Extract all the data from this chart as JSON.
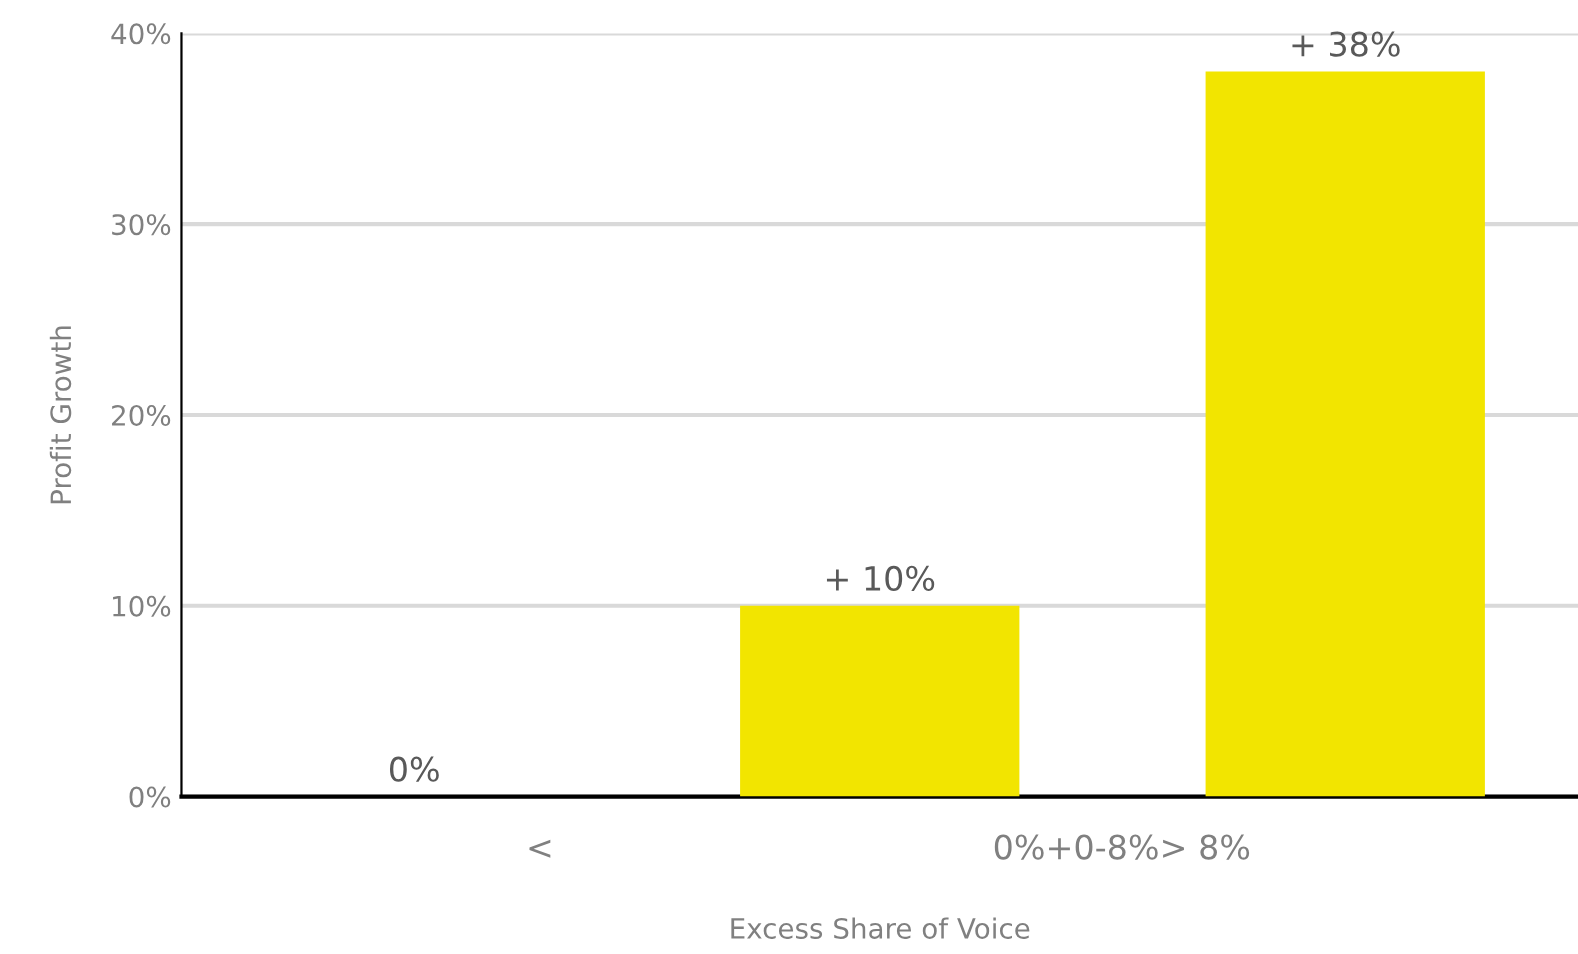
{
  "chart_data": {
    "type": "bar",
    "xlabel": "Excess Share of Voice",
    "ylabel": "Profit Growth",
    "categories": [
      null,
      null,
      null
    ],
    "values": [
      0,
      10,
      38
    ],
    "value_labels": [
      "0%",
      "+ 10%",
      "+ 38%"
    ],
    "color": "#f2e500",
    "ylim": [
      0,
      40
    ],
    "yticks": [
      {
        "value": 0,
        "label": "0%"
      },
      {
        "value": 10,
        "label": "10%"
      },
      {
        "value": 20,
        "label": "20%"
      },
      {
        "value": 30,
        "label": "30%"
      },
      {
        "value": 40,
        "label": "40%"
      }
    ],
    "grid": "y",
    "annotations": [
      "<",
      "0%+0-8%> 8%"
    ]
  }
}
